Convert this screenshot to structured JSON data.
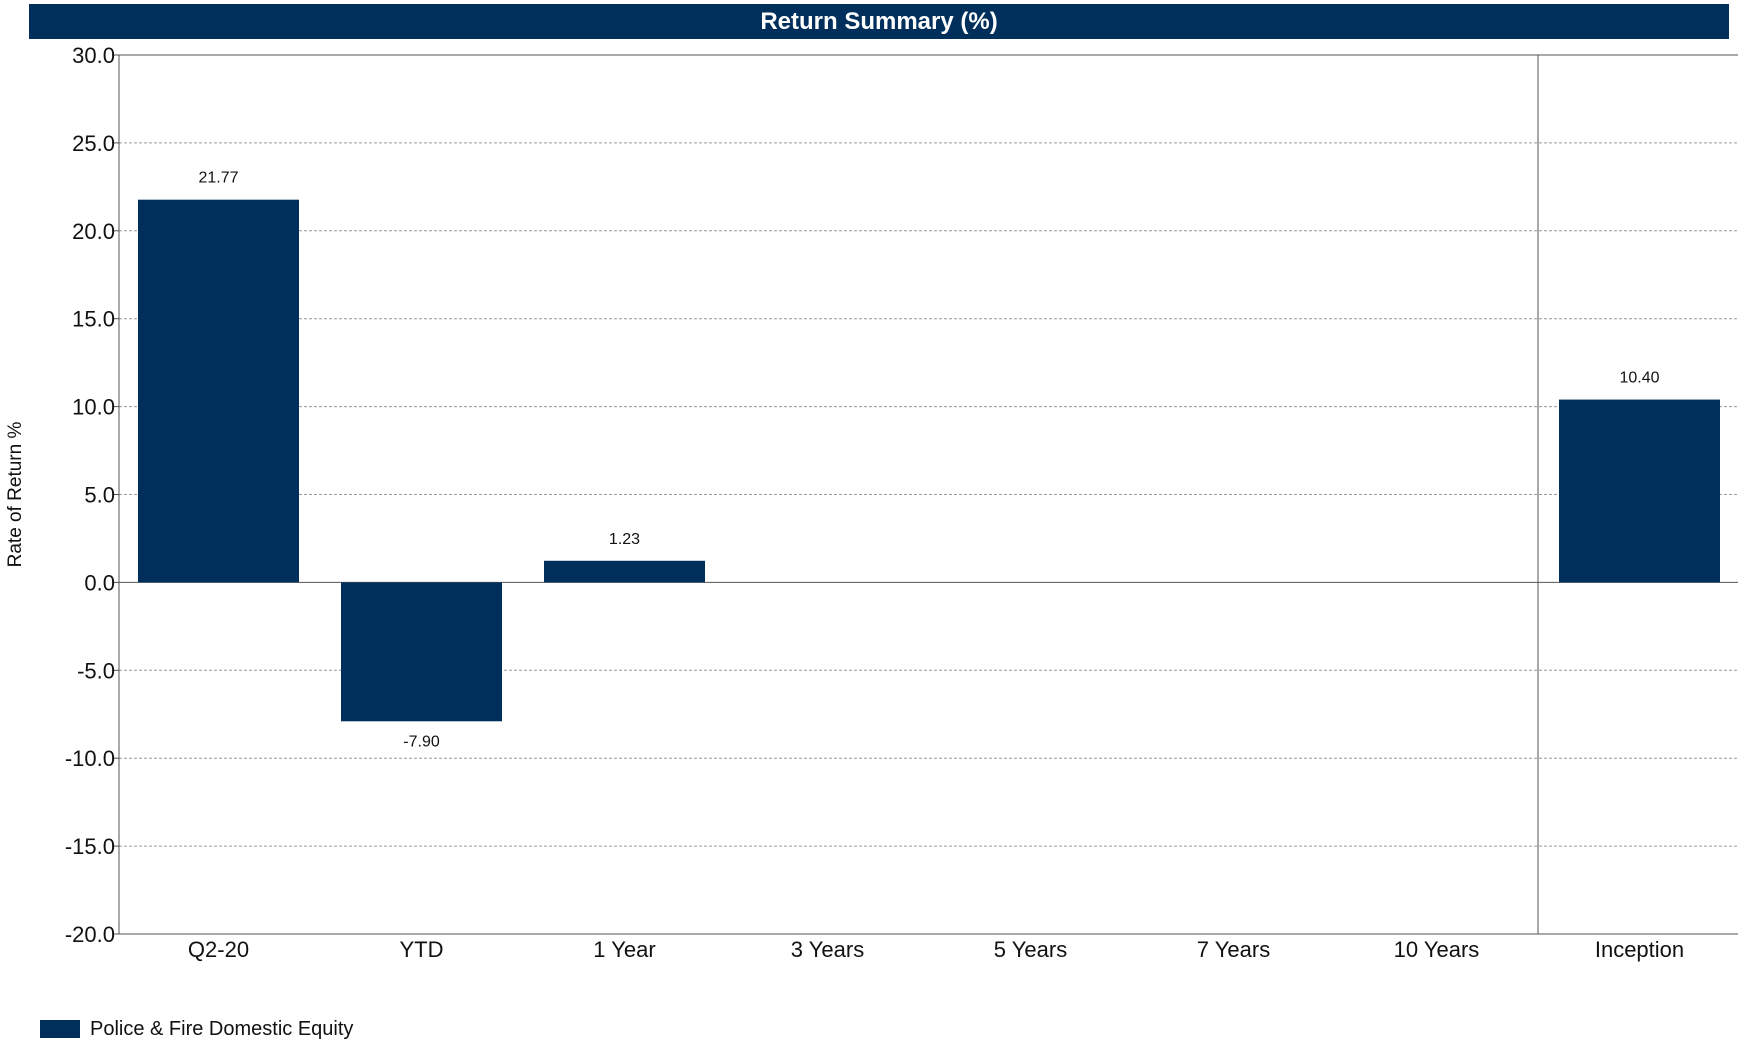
{
  "chart_data": {
    "type": "bar",
    "title": "Return Summary (%)",
    "xlabel": "",
    "ylabel": "Rate of Return %",
    "ylim": [
      -20,
      30
    ],
    "yticks": [
      30,
      25,
      20,
      15,
      10,
      5,
      0,
      -5,
      -10,
      -15,
      -20
    ],
    "ytick_labels": [
      "30.0",
      "25.0",
      "20.0",
      "15.0",
      "10.0",
      "5.0",
      "0.0",
      "-5.0",
      "-10.0",
      "-15.0",
      "-20.0"
    ],
    "categories": [
      "Q2-20",
      "YTD",
      "1 Year",
      "3 Years",
      "5 Years",
      "7 Years",
      "10 Years",
      "Inception"
    ],
    "series": [
      {
        "name": "Police & Fire Domestic Equity",
        "color": "#002f5c",
        "values": [
          21.77,
          -7.9,
          1.23,
          null,
          null,
          null,
          null,
          10.4
        ],
        "labels": [
          "21.77",
          "-7.90",
          "1.23",
          "",
          "",
          "",
          "",
          "10.40"
        ]
      }
    ],
    "grid": true,
    "grid_style": "dashed horizontal",
    "separator_before_category": "Inception",
    "legend_position": "bottom-left"
  }
}
